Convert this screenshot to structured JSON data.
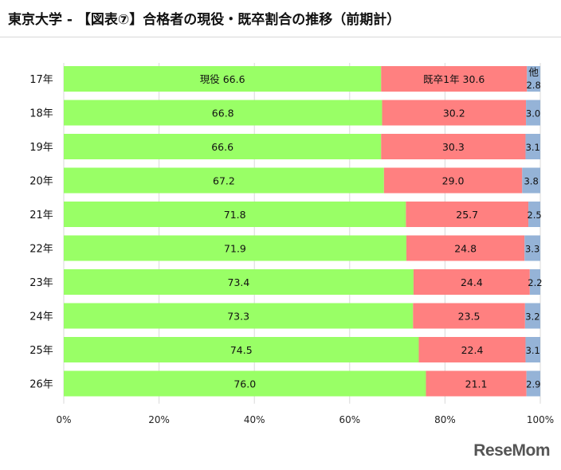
{
  "page": {
    "title": "東京大学 - 【図表⑦】合格者の現役・既卒割合の推移（前期計）",
    "logo": "ReseMom"
  },
  "chart_data": {
    "type": "bar",
    "orientation": "horizontal",
    "stacked": true,
    "title": "",
    "xlabel": "",
    "ylabel": "",
    "xlim": [
      0,
      100
    ],
    "x_ticks": [
      "0%",
      "20%",
      "40%",
      "60%",
      "80%",
      "100%"
    ],
    "categories": [
      "17年",
      "18年",
      "19年",
      "20年",
      "21年",
      "22年",
      "23年",
      "24年",
      "25年",
      "26年"
    ],
    "series": [
      {
        "name": "現役",
        "color": "#99ff66",
        "values": [
          66.6,
          66.8,
          66.6,
          67.2,
          71.8,
          71.9,
          73.4,
          73.3,
          74.5,
          76.0
        ],
        "labels": [
          "現役 66.6",
          "66.8",
          "66.6",
          "67.2",
          "71.8",
          "71.9",
          "73.4",
          "73.3",
          "74.5",
          "76.0"
        ]
      },
      {
        "name": "既卒1年",
        "color": "#ff8080",
        "values": [
          30.6,
          30.2,
          30.3,
          29.0,
          25.7,
          24.8,
          24.4,
          23.5,
          22.4,
          21.1
        ],
        "labels": [
          "既卒1年 30.6",
          "30.2",
          "30.3",
          "29.0",
          "25.7",
          "24.8",
          "24.4",
          "23.5",
          "22.4",
          "21.1"
        ]
      },
      {
        "name": "他",
        "color": "#95b3d7",
        "values": [
          2.8,
          3.0,
          3.1,
          3.8,
          2.5,
          3.3,
          2.2,
          3.2,
          3.1,
          2.9
        ],
        "labels": [
          "2.8",
          "3.0",
          "3.1",
          "3.8",
          "2.5",
          "3.3",
          "2.2",
          "3.2",
          "3.1",
          "2.9"
        ]
      }
    ],
    "annotations": [
      {
        "text": "他"
      }
    ],
    "grid": true,
    "legend": "none"
  }
}
